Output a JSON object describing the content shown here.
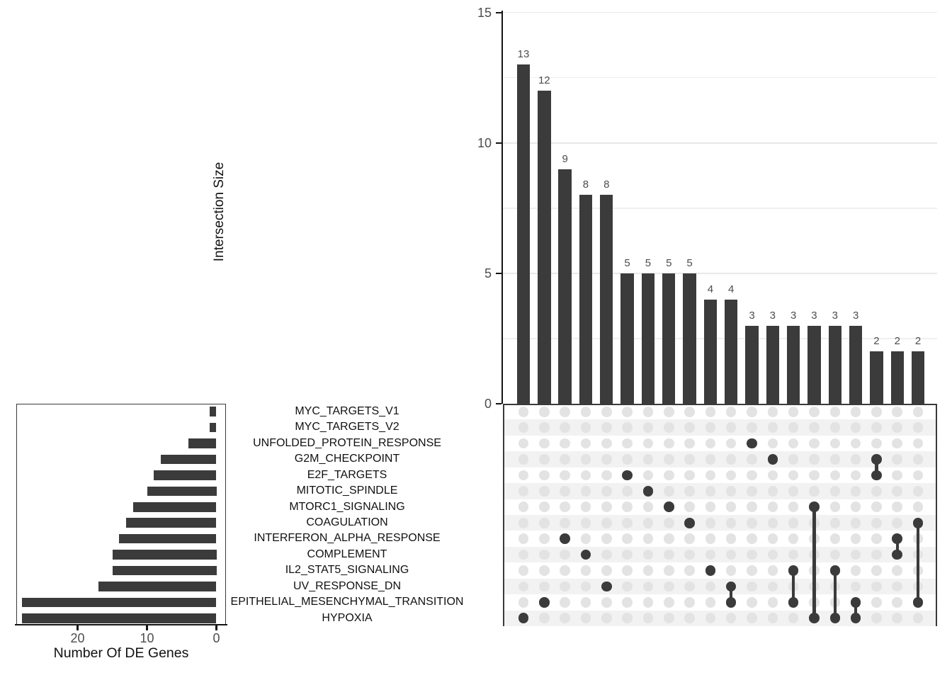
{
  "colors": {
    "bar": "#3b3b3b",
    "dot_active": "#3b3b3b",
    "dot_inactive": "#e3e3e3",
    "row_stripe": "#f2f2f2",
    "grid_major": "#e8e8e8",
    "grid_minor": "#f0f0f0",
    "axis_text": "#4d4d4d",
    "axis_title": "#111111",
    "axis_line": "#141414",
    "panel_border": "#3a3a3a"
  },
  "chart_data": {
    "type": "upset",
    "top_bar_chart": {
      "ylabel": "Intersection Size",
      "ylim": [
        0,
        15
      ],
      "yticks": [
        0,
        5,
        10,
        15
      ],
      "grid_minor": [
        2.5,
        7.5,
        12.5
      ],
      "grid_major": [
        5,
        10,
        15
      ],
      "values": [
        13,
        12,
        9,
        8,
        8,
        5,
        5,
        5,
        5,
        4,
        4,
        3,
        3,
        3,
        3,
        3,
        3,
        2,
        2,
        2
      ],
      "bar_labels": [
        "13",
        "12",
        "9",
        "8",
        "8",
        "5",
        "5",
        "5",
        "5",
        "4",
        "4",
        "3",
        "3",
        "3",
        "3",
        "3",
        "3",
        "2",
        "2",
        "2"
      ]
    },
    "set_size_chart": {
      "xlabel": "Number Of DE Genes",
      "xticks": [
        20,
        10,
        0
      ],
      "xlim": [
        0,
        29
      ],
      "axis_reversed": true,
      "sets": [
        {
          "name": "MYC_TARGETS_V1",
          "de_genes": 1
        },
        {
          "name": "MYC_TARGETS_V2",
          "de_genes": 1
        },
        {
          "name": "UNFOLDED_PROTEIN_RESPONSE",
          "de_genes": 4
        },
        {
          "name": "G2M_CHECKPOINT",
          "de_genes": 8
        },
        {
          "name": "E2F_TARGETS",
          "de_genes": 9
        },
        {
          "name": "MITOTIC_SPINDLE",
          "de_genes": 10
        },
        {
          "name": "MTORC1_SIGNALING",
          "de_genes": 12
        },
        {
          "name": "COAGULATION",
          "de_genes": 13
        },
        {
          "name": "INTERFERON_ALPHA_RESPONSE",
          "de_genes": 14
        },
        {
          "name": "COMPLEMENT",
          "de_genes": 15
        },
        {
          "name": "IL2_STAT5_SIGNALING",
          "de_genes": 15
        },
        {
          "name": "UV_RESPONSE_DN",
          "de_genes": 17
        },
        {
          "name": "EPITHELIAL_MESENCHYMAL_TRANSITION",
          "de_genes": 28
        },
        {
          "name": "HYPOXIA",
          "de_genes": 28
        }
      ]
    },
    "matrix": {
      "rows": [
        "MYC_TARGETS_V1",
        "MYC_TARGETS_V2",
        "UNFOLDED_PROTEIN_RESPONSE",
        "G2M_CHECKPOINT",
        "E2F_TARGETS",
        "MITOTIC_SPINDLE",
        "MTORC1_SIGNALING",
        "COAGULATION",
        "INTERFERON_ALPHA_RESPONSE",
        "COMPLEMENT",
        "IL2_STAT5_SIGNALING",
        "UV_RESPONSE_DN",
        "EPITHELIAL_MESENCHYMAL_TRANSITION",
        "HYPOXIA"
      ],
      "columns": [
        {
          "size": 13,
          "members": [
            "HYPOXIA"
          ]
        },
        {
          "size": 12,
          "members": [
            "EPITHELIAL_MESENCHYMAL_TRANSITION"
          ]
        },
        {
          "size": 9,
          "members": [
            "INTERFERON_ALPHA_RESPONSE"
          ]
        },
        {
          "size": 8,
          "members": [
            "COMPLEMENT"
          ]
        },
        {
          "size": 8,
          "members": [
            "UV_RESPONSE_DN"
          ]
        },
        {
          "size": 5,
          "members": [
            "E2F_TARGETS"
          ]
        },
        {
          "size": 5,
          "members": [
            "MITOTIC_SPINDLE"
          ]
        },
        {
          "size": 5,
          "members": [
            "MTORC1_SIGNALING"
          ]
        },
        {
          "size": 5,
          "members": [
            "COAGULATION"
          ]
        },
        {
          "size": 4,
          "members": [
            "IL2_STAT5_SIGNALING"
          ]
        },
        {
          "size": 4,
          "members": [
            "UV_RESPONSE_DN",
            "EPITHELIAL_MESENCHYMAL_TRANSITION"
          ]
        },
        {
          "size": 3,
          "members": [
            "UNFOLDED_PROTEIN_RESPONSE"
          ]
        },
        {
          "size": 3,
          "members": [
            "G2M_CHECKPOINT"
          ]
        },
        {
          "size": 3,
          "members": [
            "IL2_STAT5_SIGNALING",
            "EPITHELIAL_MESENCHYMAL_TRANSITION"
          ]
        },
        {
          "size": 3,
          "members": [
            "MTORC1_SIGNALING",
            "HYPOXIA"
          ]
        },
        {
          "size": 3,
          "members": [
            "IL2_STAT5_SIGNALING",
            "HYPOXIA"
          ]
        },
        {
          "size": 3,
          "members": [
            "EPITHELIAL_MESENCHYMAL_TRANSITION",
            "HYPOXIA"
          ]
        },
        {
          "size": 2,
          "members": [
            "G2M_CHECKPOINT",
            "E2F_TARGETS"
          ]
        },
        {
          "size": 2,
          "members": [
            "INTERFERON_ALPHA_RESPONSE",
            "COMPLEMENT"
          ]
        },
        {
          "size": 2,
          "members": [
            "COAGULATION",
            "EPITHELIAL_MESENCHYMAL_TRANSITION"
          ]
        }
      ]
    }
  }
}
